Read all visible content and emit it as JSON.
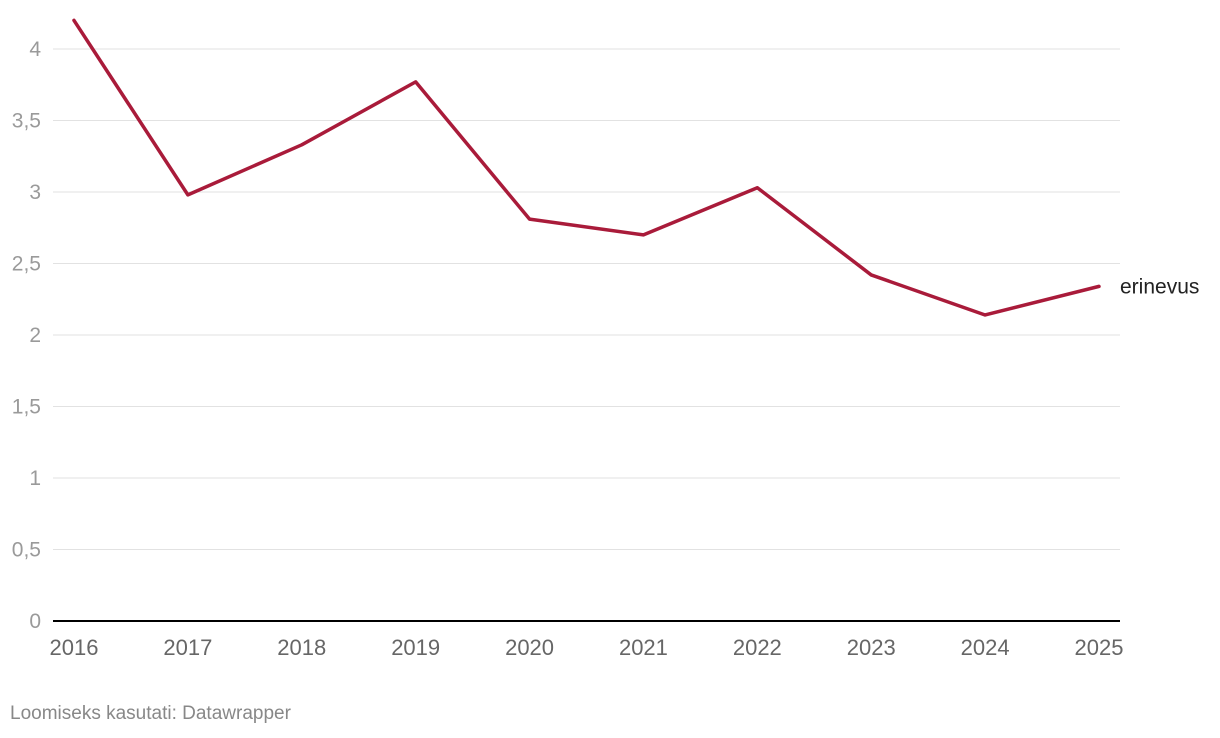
{
  "chart_data": {
    "type": "line",
    "title": "",
    "xlabel": "",
    "ylabel": "",
    "x": [
      "2016",
      "2017",
      "2018",
      "2019",
      "2020",
      "2021",
      "2022",
      "2023",
      "2024",
      "2025"
    ],
    "series": [
      {
        "name": "erinevus",
        "color": "#a91b3a",
        "values": [
          4.2,
          2.98,
          3.33,
          3.77,
          2.81,
          2.7,
          3.03,
          2.42,
          2.14,
          2.34
        ]
      }
    ],
    "ylim": [
      0,
      4
    ],
    "y_ticks": [
      {
        "value": 0,
        "label": "0"
      },
      {
        "value": 0.5,
        "label": "0,5"
      },
      {
        "value": 1,
        "label": "1"
      },
      {
        "value": 1.5,
        "label": "1,5"
      },
      {
        "value": 2,
        "label": "2"
      },
      {
        "value": 2.5,
        "label": "2,5"
      },
      {
        "value": 3,
        "label": "3"
      },
      {
        "value": 3.5,
        "label": "3,5"
      },
      {
        "value": 4,
        "label": "4"
      }
    ],
    "grid": true,
    "legend": "inline-end-label"
  },
  "footer": {
    "source": "Loomiseks kasutati: Datawrapper"
  }
}
